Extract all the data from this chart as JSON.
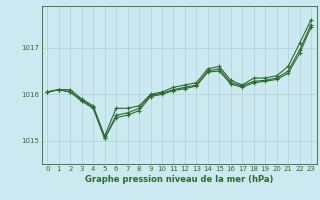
{
  "x": [
    0,
    1,
    2,
    3,
    4,
    5,
    6,
    7,
    8,
    9,
    10,
    11,
    12,
    13,
    14,
    15,
    16,
    17,
    18,
    19,
    20,
    21,
    22,
    23
  ],
  "line1": [
    1016.05,
    1016.1,
    1016.1,
    1015.9,
    1015.75,
    1015.1,
    1015.7,
    1015.7,
    1015.75,
    1016.0,
    1016.05,
    1016.15,
    1016.2,
    1016.25,
    1016.55,
    1016.6,
    1016.3,
    1016.2,
    1016.35,
    1016.35,
    1016.4,
    1016.6,
    1017.1,
    1017.6
  ],
  "line2": [
    1016.05,
    1016.1,
    1016.05,
    1015.88,
    1015.72,
    1015.05,
    1015.55,
    1015.6,
    1015.7,
    1015.98,
    1016.02,
    1016.1,
    1016.15,
    1016.2,
    1016.5,
    1016.55,
    1016.25,
    1016.18,
    1016.28,
    1016.3,
    1016.35,
    1016.5,
    1016.95,
    1017.5
  ],
  "line3": [
    1016.05,
    1016.1,
    1016.05,
    1015.85,
    1015.7,
    1015.05,
    1015.5,
    1015.55,
    1015.65,
    1015.95,
    1016.0,
    1016.08,
    1016.12,
    1016.18,
    1016.48,
    1016.5,
    1016.22,
    1016.15,
    1016.25,
    1016.28,
    1016.32,
    1016.45,
    1016.88,
    1017.45
  ],
  "line_color": "#2d6a2d",
  "bg_color": "#cce8f0",
  "grid_color": "#aacccc",
  "title": "Graphe pression niveau de la mer (hPa)",
  "ylim": [
    1014.5,
    1017.9
  ],
  "yticks": [
    1015,
    1016,
    1017
  ],
  "xlim": [
    -0.5,
    23.5
  ],
  "xticks": [
    0,
    1,
    2,
    3,
    4,
    5,
    6,
    7,
    8,
    9,
    10,
    11,
    12,
    13,
    14,
    15,
    16,
    17,
    18,
    19,
    20,
    21,
    22,
    23
  ],
  "marker": "+",
  "markersize": 3,
  "linewidth": 0.8,
  "tick_fontsize": 5,
  "title_fontsize": 6
}
